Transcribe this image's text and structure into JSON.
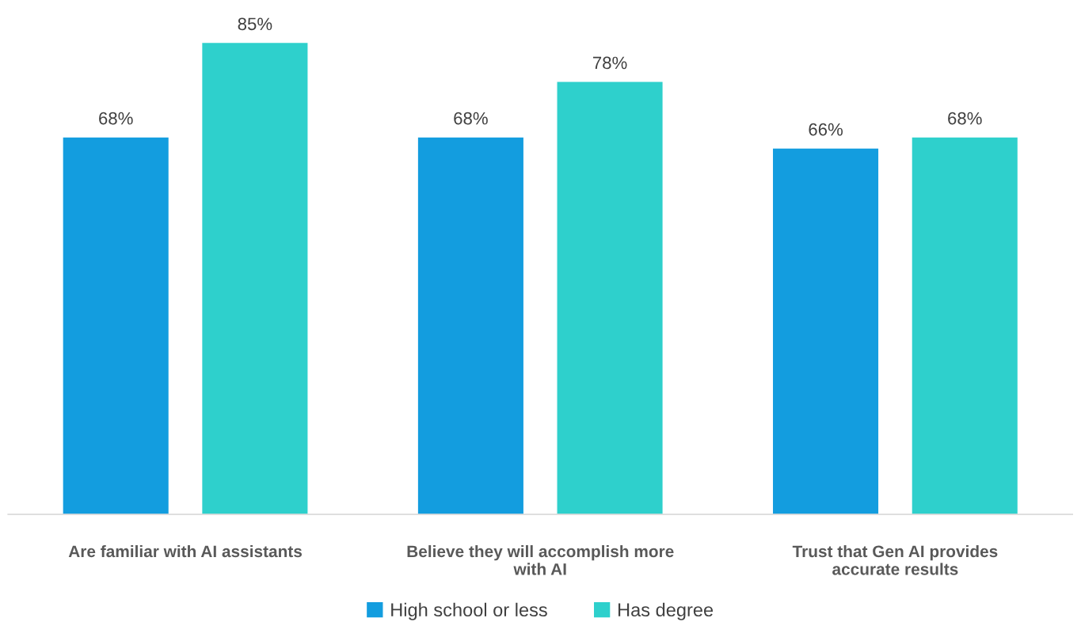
{
  "chart_data": {
    "type": "bar",
    "categories": [
      "Are familiar with AI assistants",
      "Believe they will accomplish more with AI",
      "Trust that Gen AI provides accurate results"
    ],
    "series": [
      {
        "name": "High school or less",
        "color": "#139ddf",
        "values": [
          68,
          68,
          66
        ],
        "value_labels": [
          "68%",
          "68%",
          "66%"
        ]
      },
      {
        "name": "Has degree",
        "color": "#2ed0cc",
        "values": [
          85,
          78,
          68
        ],
        "value_labels": [
          "85%",
          "78%",
          "68%"
        ]
      }
    ],
    "relative": false,
    "legend": "bottom",
    "grid": false
  }
}
